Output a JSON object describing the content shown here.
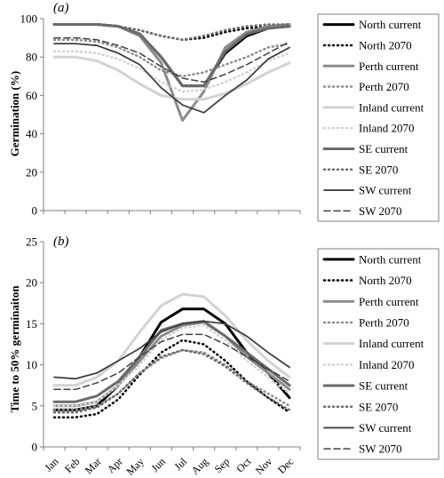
{
  "colors": {
    "black": "#000000",
    "mid_grey": "#8c8c8c",
    "light_grey": "#d3d3d3",
    "dark_grey": "#6b6b6b",
    "darker_grey": "#404040",
    "axis": "#7f7f7f",
    "legend_border": "#7f7f7f"
  },
  "chart_data": [
    {
      "type": "line",
      "panel_label": "(a)",
      "ylabel": "Germination (%)",
      "xlabel": "",
      "ylim": [
        0,
        100
      ],
      "yticks": [
        0,
        20,
        40,
        60,
        80,
        100
      ],
      "grid": false,
      "legend_position": "right",
      "categories": [
        "Jan",
        "Feb",
        "Mar",
        "Apr",
        "May",
        "Jun",
        "Jul",
        "Aug",
        "Sep",
        "Oct",
        "Nov",
        "Dec"
      ],
      "series": [
        {
          "name": "North current",
          "color": "#000000",
          "width": 3,
          "dash": "solid",
          "values": [
            97,
            97,
            97,
            96,
            92,
            80,
            65,
            65,
            82,
            91,
            95,
            96
          ]
        },
        {
          "name": "North 2070",
          "color": "#000000",
          "width": 2.5,
          "dash": "dot",
          "values": [
            97,
            97,
            97,
            96,
            94,
            91,
            89,
            90,
            93,
            95,
            96,
            96
          ]
        },
        {
          "name": "Perth current",
          "color": "#8c8c8c",
          "width": 3,
          "dash": "solid",
          "values": [
            97,
            97,
            97,
            96,
            91,
            77,
            47,
            62,
            85,
            93,
            96,
            97
          ]
        },
        {
          "name": "Perth 2070",
          "color": "#8c8c8c",
          "width": 2.5,
          "dash": "dot",
          "values": [
            89,
            89,
            88,
            85,
            80,
            73,
            70,
            72,
            76,
            80,
            85,
            87
          ]
        },
        {
          "name": "Inland current",
          "color": "#d3d3d3",
          "width": 3,
          "dash": "solid",
          "values": [
            80,
            80,
            78,
            73,
            66,
            60,
            58,
            58,
            61,
            66,
            72,
            77
          ]
        },
        {
          "name": "Inland 2070",
          "color": "#d3d3d3",
          "width": 2.5,
          "dash": "dot",
          "values": [
            83,
            83,
            82,
            79,
            74,
            67,
            62,
            63,
            67,
            72,
            78,
            82
          ]
        },
        {
          "name": "SE current",
          "color": "#6b6b6b",
          "width": 3,
          "dash": "solid",
          "values": [
            97,
            97,
            97,
            96,
            92,
            80,
            65,
            65,
            83,
            92,
            95,
            96
          ]
        },
        {
          "name": "SE 2070",
          "color": "#6b6b6b",
          "width": 2.5,
          "dash": "dot",
          "values": [
            97,
            97,
            97,
            96,
            94,
            91,
            89,
            91,
            94,
            96,
            97,
            97
          ]
        },
        {
          "name": "SW current",
          "color": "#404040",
          "width": 1.8,
          "dash": "solid",
          "values": [
            87,
            87,
            86,
            82,
            76,
            64,
            55,
            51,
            60,
            68,
            79,
            85
          ]
        },
        {
          "name": "SW 2070",
          "color": "#404040",
          "width": 1.5,
          "dash": "dash",
          "values": [
            90,
            90,
            89,
            86,
            82,
            75,
            69,
            67,
            71,
            76,
            82,
            88
          ]
        }
      ]
    },
    {
      "type": "line",
      "panel_label": "(b)",
      "ylabel": "Time to 50% germinaiton",
      "xlabel": "",
      "ylim": [
        0,
        25
      ],
      "yticks": [
        0,
        5,
        10,
        15,
        20,
        25
      ],
      "grid": false,
      "legend_position": "right",
      "categories": [
        "Jan",
        "Feb",
        "Mar",
        "Apr",
        "May",
        "Jun",
        "Jul",
        "Aug",
        "Sep",
        "Oct",
        "Nov",
        "Dec"
      ],
      "series": [
        {
          "name": "North current",
          "color": "#000000",
          "width": 3,
          "dash": "solid",
          "values": [
            4.5,
            4.5,
            5.0,
            7.5,
            11.0,
            15.2,
            16.8,
            16.8,
            15.0,
            11.5,
            9.0,
            6.0
          ]
        },
        {
          "name": "North 2070",
          "color": "#000000",
          "width": 2.5,
          "dash": "dot",
          "values": [
            3.6,
            3.6,
            4.0,
            5.8,
            8.8,
            11.5,
            13.0,
            12.5,
            10.5,
            8.0,
            6.0,
            4.2
          ]
        },
        {
          "name": "Perth current",
          "color": "#8c8c8c",
          "width": 3,
          "dash": "solid",
          "values": [
            5.0,
            5.0,
            5.5,
            7.5,
            10.5,
            13.5,
            14.8,
            15.2,
            13.5,
            11.0,
            9.0,
            7.0
          ]
        },
        {
          "name": "Perth 2070",
          "color": "#8c8c8c",
          "width": 2.5,
          "dash": "dot",
          "values": [
            4.5,
            4.5,
            5.0,
            6.5,
            9.0,
            10.8,
            11.8,
            11.5,
            10.0,
            8.0,
            6.5,
            5.0
          ]
        },
        {
          "name": "Inland current",
          "color": "#d3d3d3",
          "width": 3,
          "dash": "solid",
          "values": [
            7.5,
            7.5,
            8.5,
            10.5,
            14.0,
            17.2,
            18.6,
            18.3,
            16.0,
            13.0,
            10.5,
            8.5
          ]
        },
        {
          "name": "Inland 2070",
          "color": "#d3d3d3",
          "width": 2.5,
          "dash": "dot",
          "values": [
            5.0,
            5.0,
            5.5,
            7.5,
            10.0,
            13.0,
            14.5,
            14.8,
            13.0,
            10.5,
            8.5,
            6.5
          ]
        },
        {
          "name": "SE current",
          "color": "#6b6b6b",
          "width": 3,
          "dash": "solid",
          "values": [
            5.5,
            5.5,
            6.2,
            8.0,
            11.0,
            14.2,
            15.0,
            15.3,
            13.5,
            11.5,
            9.5,
            7.5
          ]
        },
        {
          "name": "SE 2070",
          "color": "#6b6b6b",
          "width": 2.5,
          "dash": "dot",
          "values": [
            4.2,
            4.2,
            4.8,
            6.5,
            9.0,
            11.0,
            11.8,
            11.3,
            9.8,
            7.8,
            6.0,
            4.5
          ]
        },
        {
          "name": "SW current",
          "color": "#404040",
          "width": 1.8,
          "dash": "solid",
          "values": [
            8.5,
            8.3,
            9.0,
            10.5,
            12.0,
            14.0,
            15.0,
            15.3,
            15.0,
            13.5,
            11.5,
            9.7
          ]
        },
        {
          "name": "SW 2070",
          "color": "#404040",
          "width": 1.5,
          "dash": "dash",
          "values": [
            7.0,
            7.0,
            7.8,
            9.0,
            11.0,
            12.8,
            13.7,
            13.7,
            12.5,
            11.0,
            9.5,
            8.0
          ]
        }
      ]
    }
  ]
}
